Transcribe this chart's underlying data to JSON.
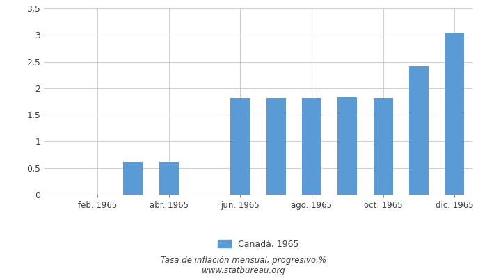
{
  "month_nums": [
    1,
    2,
    3,
    4,
    5,
    6,
    7,
    8,
    9,
    10,
    11,
    12
  ],
  "values": [
    0.0,
    0.0,
    0.62,
    0.62,
    0.0,
    1.81,
    1.81,
    1.81,
    1.83,
    1.81,
    2.41,
    3.03
  ],
  "bar_color": "#5b9bd5",
  "bar_width": 0.55,
  "ylim": [
    0,
    3.5
  ],
  "yticks": [
    0,
    0.5,
    1.0,
    1.5,
    2.0,
    2.5,
    3.0,
    3.5
  ],
  "ytick_labels": [
    "0",
    "0,5",
    "1",
    "1,5",
    "2",
    "2,5",
    "3",
    "3,5"
  ],
  "xlim": [
    0.5,
    12.5
  ],
  "xtick_positions": [
    2,
    4,
    6,
    8,
    10,
    12
  ],
  "xtick_labels": [
    "feb. 1965",
    "abr. 1965",
    "jun. 1965",
    "ago. 1965",
    "oct. 1965",
    "dic. 1965"
  ],
  "legend_label": "Canadá, 1965",
  "footer_line1": "Tasa de inflación mensual, progresivo,%",
  "footer_line2": "www.statbureau.org",
  "background_color": "#ffffff",
  "grid_color": "#d0d0d0",
  "text_color": "#404040",
  "tick_color": "#888888"
}
